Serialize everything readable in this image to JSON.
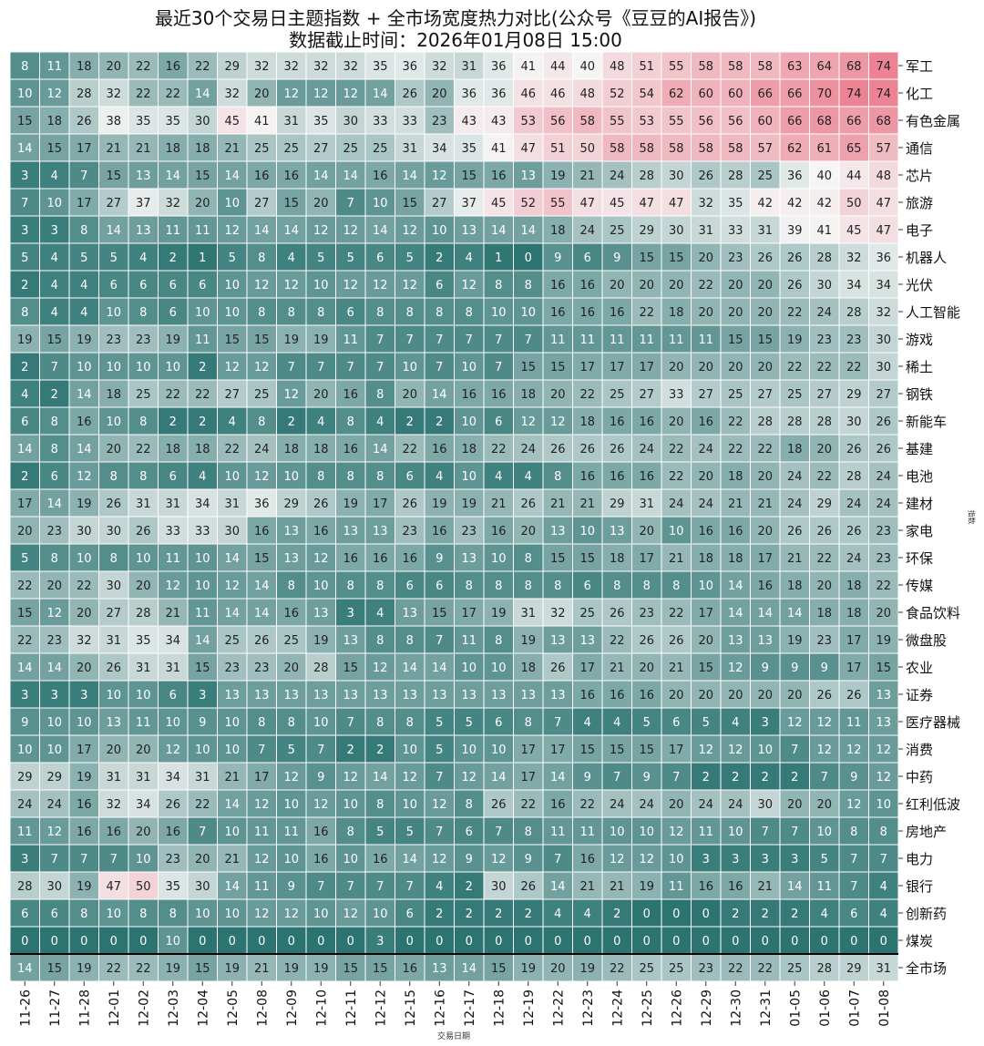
{
  "chart_data": {
    "type": "heatmap",
    "title": "最近30个交易日主题指数 + 全市场宽度热力对比(公众号《豆豆的AI报告》)",
    "subtitle": "数据截止时间：2026年01月08日 15:00",
    "xlabel": "交易日期",
    "ylabel": "指数",
    "dates": [
      "11-26",
      "11-27",
      "11-28",
      "12-01",
      "12-02",
      "12-03",
      "12-04",
      "12-05",
      "12-08",
      "12-09",
      "12-10",
      "12-11",
      "12-12",
      "12-15",
      "12-16",
      "12-17",
      "12-18",
      "12-19",
      "12-22",
      "12-23",
      "12-24",
      "12-25",
      "12-26",
      "12-29",
      "12-30",
      "12-31",
      "01-05",
      "01-06",
      "01-07",
      "01-08"
    ],
    "rows": [
      {
        "name": "军工",
        "values": [
          8,
          11,
          18,
          20,
          22,
          16,
          22,
          29,
          32,
          32,
          32,
          32,
          35,
          36,
          32,
          31,
          36,
          41,
          44,
          40,
          48,
          51,
          55,
          58,
          58,
          58,
          63,
          64,
          68,
          74
        ]
      },
      {
        "name": "化工",
        "values": [
          10,
          12,
          28,
          32,
          22,
          22,
          14,
          32,
          20,
          12,
          12,
          12,
          14,
          26,
          20,
          36,
          36,
          46,
          46,
          48,
          52,
          54,
          62,
          60,
          60,
          66,
          66,
          70,
          74,
          74
        ]
      },
      {
        "name": "有色金属",
        "values": [
          15,
          18,
          26,
          38,
          35,
          35,
          30,
          45,
          41,
          31,
          35,
          30,
          33,
          33,
          23,
          43,
          43,
          53,
          56,
          58,
          55,
          53,
          55,
          56,
          56,
          60,
          66,
          68,
          66,
          68
        ]
      },
      {
        "name": "通信",
        "values": [
          14,
          15,
          17,
          21,
          21,
          18,
          18,
          21,
          25,
          25,
          27,
          25,
          25,
          31,
          34,
          35,
          41,
          47,
          51,
          50,
          58,
          58,
          58,
          58,
          58,
          57,
          62,
          61,
          65,
          57
        ]
      },
      {
        "name": "芯片",
        "values": [
          3,
          4,
          7,
          15,
          13,
          14,
          15,
          14,
          16,
          16,
          14,
          14,
          16,
          14,
          12,
          15,
          16,
          13,
          19,
          21,
          24,
          28,
          30,
          26,
          28,
          25,
          36,
          40,
          44,
          48
        ]
      },
      {
        "name": "旅游",
        "values": [
          7,
          10,
          17,
          27,
          37,
          32,
          20,
          10,
          27,
          15,
          20,
          7,
          10,
          15,
          27,
          37,
          45,
          52,
          55,
          47,
          45,
          47,
          47,
          32,
          35,
          42,
          42,
          42,
          50,
          47
        ]
      },
      {
        "name": "电子",
        "values": [
          3,
          3,
          8,
          14,
          13,
          11,
          11,
          12,
          14,
          14,
          12,
          12,
          14,
          12,
          10,
          13,
          14,
          14,
          18,
          24,
          25,
          29,
          30,
          31,
          33,
          31,
          39,
          41,
          45,
          47
        ]
      },
      {
        "name": "机器人",
        "values": [
          5,
          4,
          5,
          5,
          4,
          2,
          1,
          5,
          8,
          4,
          5,
          5,
          6,
          5,
          2,
          4,
          1,
          0,
          9,
          6,
          9,
          15,
          15,
          20,
          23,
          26,
          26,
          28,
          32,
          36
        ]
      },
      {
        "name": "光伏",
        "values": [
          2,
          4,
          4,
          6,
          6,
          6,
          6,
          10,
          12,
          12,
          10,
          12,
          12,
          12,
          6,
          12,
          8,
          8,
          16,
          16,
          20,
          20,
          20,
          22,
          20,
          20,
          26,
          30,
          34,
          34
        ]
      },
      {
        "name": "人工智能",
        "values": [
          8,
          4,
          4,
          10,
          8,
          6,
          10,
          10,
          8,
          8,
          8,
          6,
          8,
          8,
          8,
          8,
          10,
          10,
          16,
          16,
          16,
          22,
          18,
          20,
          20,
          20,
          22,
          24,
          28,
          32
        ]
      },
      {
        "name": "游戏",
        "values": [
          19,
          15,
          19,
          23,
          23,
          19,
          11,
          15,
          15,
          19,
          19,
          11,
          7,
          7,
          7,
          7,
          7,
          7,
          11,
          11,
          11,
          11,
          11,
          11,
          15,
          15,
          19,
          23,
          23,
          30
        ]
      },
      {
        "name": "稀土",
        "values": [
          2,
          7,
          10,
          10,
          10,
          10,
          2,
          12,
          12,
          7,
          7,
          7,
          7,
          10,
          7,
          10,
          7,
          15,
          15,
          17,
          17,
          17,
          20,
          20,
          20,
          20,
          22,
          22,
          22,
          30
        ]
      },
      {
        "name": "钢铁",
        "values": [
          4,
          2,
          14,
          18,
          25,
          22,
          22,
          27,
          25,
          12,
          20,
          16,
          8,
          20,
          14,
          16,
          16,
          18,
          20,
          22,
          25,
          27,
          33,
          27,
          25,
          27,
          25,
          27,
          29,
          27
        ]
      },
      {
        "name": "新能车",
        "values": [
          6,
          8,
          16,
          10,
          8,
          2,
          2,
          4,
          8,
          2,
          4,
          8,
          4,
          2,
          2,
          10,
          6,
          12,
          12,
          18,
          16,
          16,
          20,
          16,
          22,
          28,
          28,
          28,
          30,
          26
        ]
      },
      {
        "name": "基建",
        "values": [
          14,
          8,
          14,
          20,
          22,
          18,
          18,
          22,
          24,
          18,
          18,
          16,
          14,
          22,
          16,
          18,
          22,
          24,
          26,
          26,
          26,
          24,
          22,
          24,
          22,
          22,
          18,
          20,
          26,
          26
        ]
      },
      {
        "name": "电池",
        "values": [
          2,
          6,
          12,
          8,
          8,
          6,
          4,
          10,
          12,
          10,
          8,
          8,
          8,
          6,
          4,
          10,
          4,
          4,
          8,
          16,
          16,
          16,
          22,
          20,
          18,
          20,
          24,
          22,
          28,
          24
        ]
      },
      {
        "name": "建材",
        "values": [
          17,
          14,
          19,
          26,
          31,
          31,
          34,
          31,
          36,
          29,
          26,
          19,
          17,
          26,
          19,
          19,
          21,
          26,
          21,
          21,
          29,
          31,
          24,
          24,
          21,
          21,
          24,
          29,
          24,
          24
        ]
      },
      {
        "name": "家电",
        "values": [
          20,
          23,
          30,
          30,
          26,
          33,
          33,
          30,
          16,
          13,
          16,
          13,
          13,
          23,
          16,
          23,
          16,
          20,
          13,
          10,
          13,
          20,
          10,
          16,
          16,
          20,
          26,
          26,
          26,
          23
        ]
      },
      {
        "name": "环保",
        "values": [
          5,
          8,
          10,
          8,
          10,
          11,
          10,
          14,
          15,
          13,
          12,
          16,
          16,
          16,
          9,
          13,
          10,
          8,
          15,
          15,
          18,
          17,
          21,
          18,
          18,
          17,
          21,
          22,
          24,
          23
        ]
      },
      {
        "name": "传媒",
        "values": [
          22,
          20,
          22,
          30,
          20,
          12,
          10,
          12,
          14,
          8,
          10,
          8,
          8,
          6,
          6,
          8,
          8,
          8,
          8,
          6,
          8,
          8,
          8,
          10,
          14,
          16,
          18,
          20,
          18,
          22
        ]
      },
      {
        "name": "食品饮料",
        "values": [
          15,
          12,
          20,
          27,
          28,
          21,
          11,
          14,
          14,
          16,
          13,
          3,
          4,
          13,
          15,
          17,
          19,
          31,
          32,
          25,
          26,
          23,
          22,
          17,
          14,
          14,
          14,
          18,
          18,
          20
        ]
      },
      {
        "name": "微盘股",
        "values": [
          22,
          23,
          32,
          31,
          35,
          34,
          14,
          25,
          26,
          25,
          19,
          13,
          8,
          8,
          7,
          11,
          8,
          19,
          13,
          13,
          22,
          26,
          26,
          20,
          13,
          13,
          19,
          23,
          17,
          19
        ]
      },
      {
        "name": "农业",
        "values": [
          14,
          14,
          20,
          26,
          31,
          31,
          15,
          23,
          23,
          20,
          28,
          15,
          12,
          14,
          14,
          10,
          10,
          18,
          26,
          17,
          21,
          20,
          21,
          15,
          12,
          9,
          9,
          9,
          17,
          15
        ]
      },
      {
        "name": "证券",
        "values": [
          3,
          3,
          3,
          10,
          10,
          6,
          3,
          13,
          13,
          13,
          13,
          13,
          13,
          13,
          13,
          13,
          13,
          13,
          13,
          16,
          16,
          16,
          20,
          20,
          20,
          20,
          20,
          26,
          26,
          13
        ]
      },
      {
        "name": "医疗器械",
        "values": [
          9,
          10,
          10,
          13,
          11,
          10,
          9,
          10,
          8,
          8,
          10,
          7,
          8,
          8,
          5,
          5,
          6,
          8,
          7,
          4,
          4,
          5,
          6,
          5,
          4,
          3,
          12,
          12,
          11,
          13
        ]
      },
      {
        "name": "消费",
        "values": [
          10,
          10,
          17,
          20,
          20,
          12,
          10,
          10,
          7,
          5,
          7,
          2,
          2,
          10,
          5,
          10,
          10,
          17,
          17,
          15,
          15,
          15,
          17,
          12,
          12,
          10,
          7,
          12,
          12,
          12
        ]
      },
      {
        "name": "中药",
        "values": [
          29,
          29,
          19,
          31,
          31,
          34,
          31,
          21,
          17,
          12,
          9,
          12,
          14,
          12,
          7,
          12,
          14,
          17,
          14,
          9,
          7,
          9,
          7,
          2,
          2,
          2,
          2,
          7,
          9,
          12
        ]
      },
      {
        "name": "红利低波",
        "values": [
          24,
          24,
          16,
          32,
          34,
          26,
          22,
          14,
          12,
          10,
          12,
          10,
          8,
          10,
          12,
          8,
          26,
          22,
          16,
          22,
          24,
          24,
          20,
          24,
          24,
          30,
          20,
          20,
          12,
          10
        ]
      },
      {
        "name": "房地产",
        "values": [
          11,
          12,
          16,
          16,
          20,
          16,
          7,
          10,
          11,
          11,
          16,
          8,
          5,
          5,
          7,
          6,
          7,
          8,
          11,
          11,
          10,
          10,
          12,
          11,
          10,
          7,
          7,
          10,
          8,
          8
        ]
      },
      {
        "name": "电力",
        "values": [
          3,
          7,
          7,
          7,
          10,
          23,
          20,
          21,
          12,
          10,
          16,
          10,
          16,
          14,
          12,
          9,
          12,
          9,
          7,
          16,
          12,
          12,
          10,
          3,
          3,
          3,
          3,
          5,
          7,
          7
        ]
      },
      {
        "name": "银行",
        "values": [
          28,
          30,
          19,
          47,
          50,
          35,
          30,
          14,
          11,
          9,
          7,
          7,
          7,
          7,
          4,
          2,
          30,
          26,
          14,
          21,
          21,
          19,
          11,
          16,
          16,
          21,
          14,
          11,
          7,
          4
        ]
      },
      {
        "name": "创新药",
        "values": [
          6,
          6,
          8,
          10,
          8,
          8,
          10,
          10,
          12,
          12,
          10,
          12,
          10,
          6,
          2,
          2,
          2,
          2,
          4,
          4,
          2,
          0,
          0,
          0,
          2,
          2,
          2,
          4,
          6,
          4
        ]
      },
      {
        "name": "煤炭",
        "values": [
          0,
          0,
          0,
          0,
          0,
          10,
          0,
          0,
          0,
          0,
          0,
          0,
          3,
          0,
          0,
          0,
          0,
          0,
          0,
          0,
          0,
          0,
          0,
          0,
          0,
          0,
          0,
          0,
          0,
          0
        ]
      },
      {
        "name": "全市场",
        "values": [
          14,
          15,
          19,
          22,
          22,
          19,
          15,
          19,
          21,
          19,
          19,
          15,
          15,
          16,
          13,
          14,
          15,
          19,
          20,
          19,
          22,
          25,
          25,
          23,
          22,
          22,
          25,
          28,
          29,
          31
        ]
      }
    ],
    "color_scale": {
      "low": "#2b7471",
      "mid": "#f5f5f5",
      "high": "#ea6f82",
      "range": [
        0,
        80
      ]
    },
    "grid": true,
    "legend": "none"
  }
}
